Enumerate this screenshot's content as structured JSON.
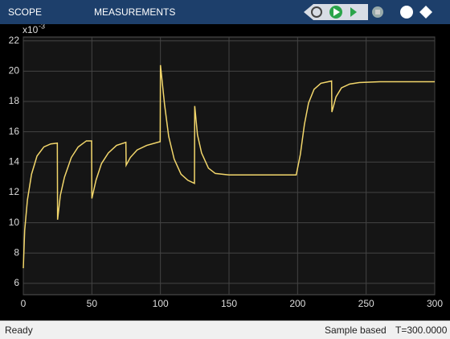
{
  "toolbar": {
    "tabs": [
      "SCOPE",
      "MEASUREMENTS"
    ]
  },
  "status": {
    "left": "Ready",
    "mode": "Sample based",
    "time": "T=300.0000"
  },
  "chart_data": {
    "type": "line",
    "exponent_base": "x10",
    "exponent": "-3",
    "xlim": [
      0,
      300
    ],
    "xticks": [
      0,
      50,
      100,
      150,
      200,
      250,
      300
    ],
    "ylim": [
      5.25,
      22.25
    ],
    "yticks": [
      6,
      8,
      10,
      12,
      14,
      16,
      18,
      20,
      22
    ],
    "grid": true,
    "series": [
      {
        "color": "#f2d66b",
        "x": [
          0,
          1,
          3,
          6,
          10,
          15,
          20,
          24.8,
          25,
          27,
          30,
          35,
          40,
          46,
          49.8,
          50,
          53,
          57,
          62,
          68,
          74.8,
          75,
          78,
          83,
          90,
          99.8,
          100,
          103,
          106,
          110,
          115,
          120,
          124.8,
          125,
          127,
          130,
          135,
          140,
          150,
          199,
          202,
          205,
          208,
          212,
          217,
          224.8,
          225,
          228,
          232,
          238,
          245,
          260,
          300
        ],
        "values": [
          7,
          9.5,
          11.5,
          13.2,
          14.4,
          15.0,
          15.2,
          15.25,
          10.2,
          11.8,
          13.0,
          14.3,
          15.0,
          15.4,
          15.4,
          11.6,
          12.8,
          13.9,
          14.6,
          15.1,
          15.3,
          13.8,
          14.3,
          14.8,
          15.1,
          15.35,
          20.4,
          17.8,
          15.7,
          14.2,
          13.2,
          12.8,
          12.6,
          17.7,
          15.8,
          14.6,
          13.6,
          13.25,
          13.15,
          13.15,
          14.5,
          16.5,
          17.9,
          18.8,
          19.2,
          19.35,
          17.3,
          18.3,
          18.9,
          19.15,
          19.25,
          19.3,
          19.3
        ]
      }
    ]
  }
}
